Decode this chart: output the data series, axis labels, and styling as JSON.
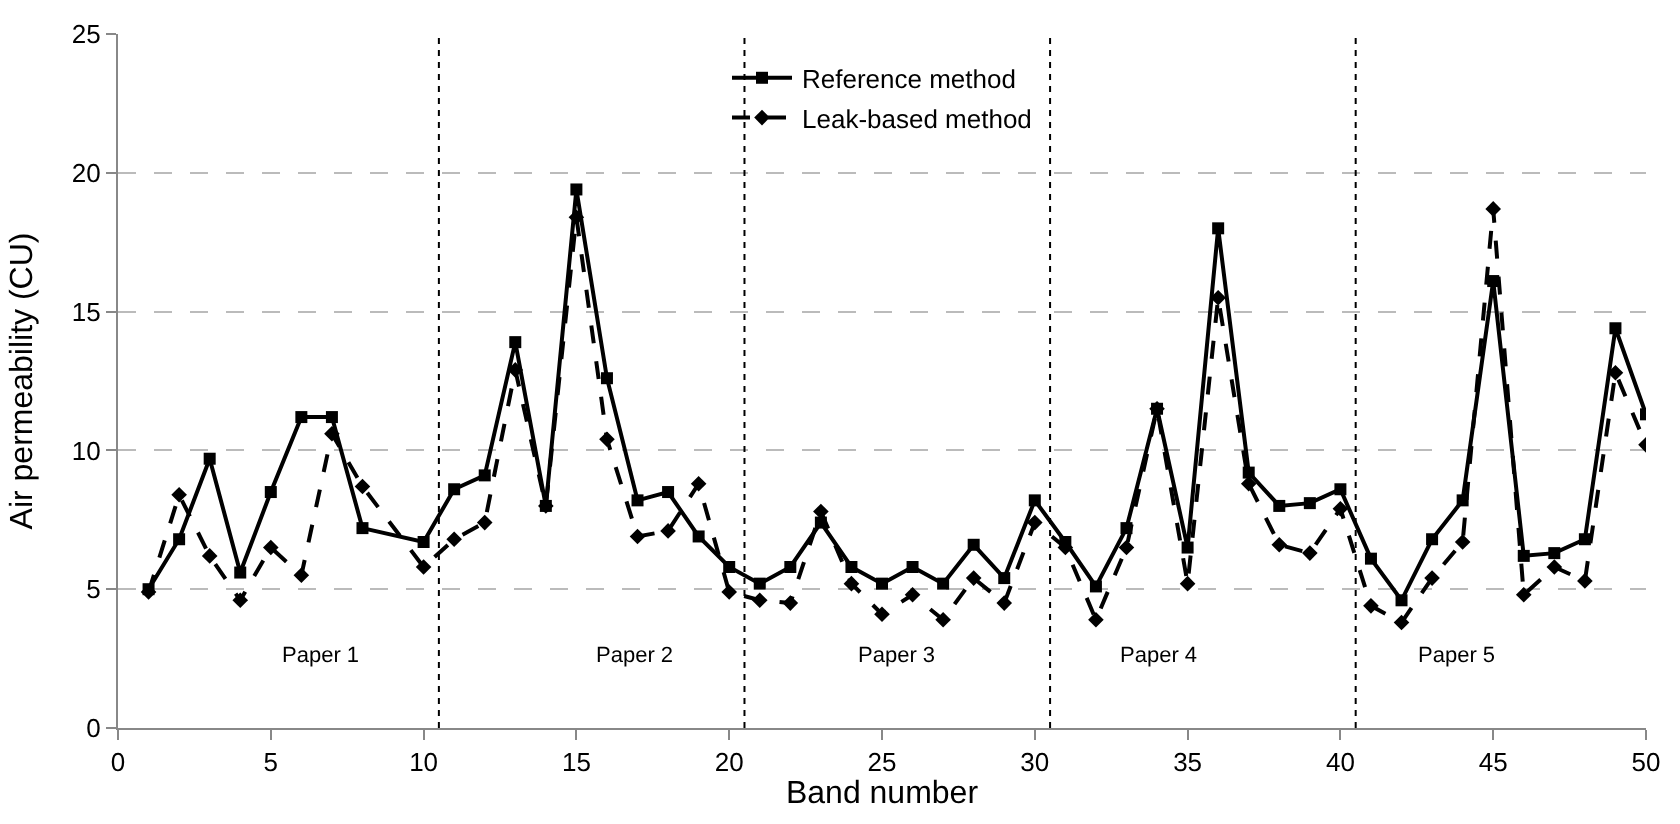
{
  "chart_data": {
    "type": "line",
    "xlabel": "Band number",
    "ylabel": "Air permeability (CU)",
    "x": [
      1,
      2,
      3,
      4,
      5,
      6,
      7,
      8,
      10,
      11,
      12,
      13,
      14,
      15,
      16,
      17,
      18,
      19,
      20,
      21,
      22,
      23,
      24,
      25,
      26,
      27,
      28,
      29,
      30,
      31,
      32,
      33,
      34,
      35,
      36,
      37,
      38,
      39,
      40,
      41,
      42,
      43,
      44,
      45,
      46,
      47,
      48,
      49,
      50
    ],
    "series": [
      {
        "name": "Reference method",
        "color": "#000000",
        "marker": "square",
        "line_style": "solid",
        "values": [
          5.0,
          6.8,
          9.7,
          5.6,
          8.5,
          11.2,
          11.2,
          7.2,
          6.7,
          8.6,
          9.1,
          13.9,
          8.0,
          19.4,
          12.6,
          8.2,
          8.5,
          6.9,
          5.8,
          5.2,
          5.8,
          7.4,
          5.8,
          5.2,
          5.8,
          5.2,
          6.6,
          5.4,
          8.2,
          6.7,
          5.1,
          7.2,
          11.5,
          6.5,
          18.0,
          9.2,
          8.0,
          8.1,
          8.6,
          6.1,
          4.6,
          6.8,
          8.2,
          16.1,
          6.2,
          6.3,
          6.8,
          14.4,
          11.3
        ]
      },
      {
        "name": "Leak-based method",
        "color": "#000000",
        "marker": "diamond",
        "line_style": "dashed",
        "values": [
          4.9,
          8.4,
          6.2,
          4.6,
          6.5,
          5.5,
          10.6,
          8.7,
          5.8,
          6.8,
          7.4,
          12.9,
          8.0,
          18.4,
          10.4,
          6.9,
          7.1,
          8.8,
          4.9,
          4.6,
          4.5,
          7.8,
          5.2,
          4.1,
          4.8,
          3.9,
          5.4,
          4.5,
          7.4,
          6.5,
          3.9,
          6.5,
          11.5,
          5.2,
          15.5,
          8.8,
          6.6,
          6.3,
          7.9,
          4.4,
          3.8,
          5.4,
          6.7,
          18.7,
          4.8,
          5.8,
          5.3,
          12.8,
          10.2
        ]
      }
    ],
    "xlim": [
      0,
      50
    ],
    "xticks": [
      0,
      5,
      10,
      15,
      20,
      25,
      30,
      35,
      40,
      45,
      50
    ],
    "ylim": [
      0,
      25
    ],
    "yticks": [
      0,
      5,
      10,
      15,
      20,
      25
    ],
    "grid": "y",
    "legend": "top",
    "ref_lines": [
      {
        "axis": "x",
        "value": 10.5,
        "line_style": "dotted",
        "color": "#000000"
      },
      {
        "axis": "x",
        "value": 20.5,
        "line_style": "dotted",
        "color": "#000000"
      },
      {
        "axis": "x",
        "value": 30.5,
        "line_style": "dotted",
        "color": "#000000"
      },
      {
        "axis": "x",
        "value": 40.5,
        "line_style": "dotted",
        "color": "#000000"
      }
    ],
    "annotations": [
      "Paper 1",
      "Paper 2",
      "Paper 3",
      "Paper 4",
      "Paper 5"
    ]
  }
}
